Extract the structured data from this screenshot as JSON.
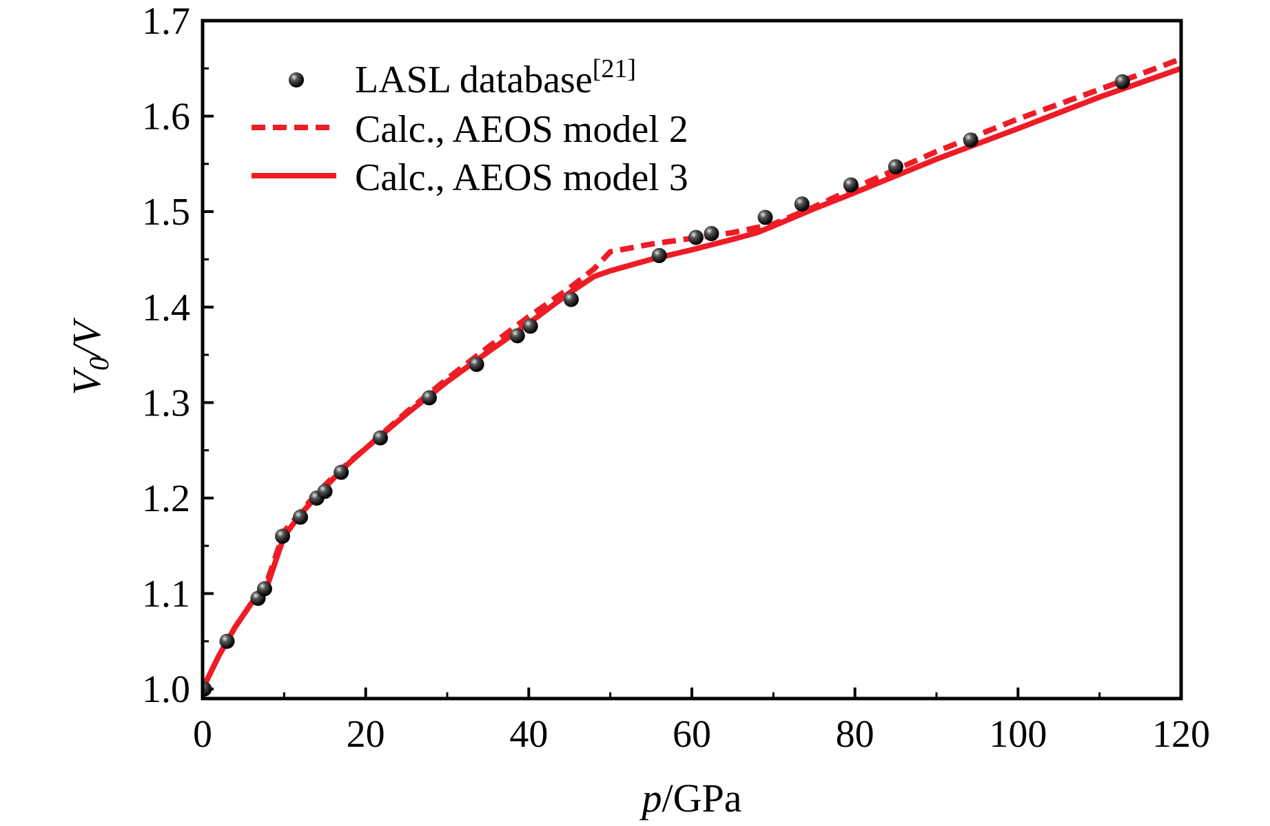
{
  "chart_data": {
    "type": "line",
    "xlabel": {
      "italic": "p",
      "rest": "/GPa"
    },
    "ylabel": {
      "main": "V",
      "sub": "0",
      "rest": "/V"
    },
    "xlim": [
      0,
      120
    ],
    "ylim": [
      0.99,
      1.7
    ],
    "xticks": [
      0,
      20,
      40,
      60,
      80,
      100,
      120
    ],
    "yticks": [
      1.0,
      1.1,
      1.2,
      1.3,
      1.4,
      1.5,
      1.6,
      1.7
    ],
    "xtick_labels": [
      "0",
      "20",
      "40",
      "60",
      "80",
      "100",
      "120"
    ],
    "ytick_labels": [
      "1.0",
      "1.1",
      "1.2",
      "1.3",
      "1.4",
      "1.5",
      "1.6",
      "1.7"
    ],
    "grid": false,
    "legend_position": "top-left",
    "series": [
      {
        "name": "LASL database",
        "name_superscript": "[21]",
        "kind": "scatter",
        "color": "#1a1a1a",
        "x": [
          0.2,
          3.0,
          6.8,
          7.6,
          9.8,
          12.0,
          14.0,
          15.0,
          17.0,
          21.8,
          27.8,
          33.6,
          38.6,
          40.2,
          45.2,
          56.0,
          60.5,
          62.4,
          69.0,
          73.5,
          79.5,
          85.0,
          94.2,
          112.8
        ],
        "y": [
          1.0,
          1.05,
          1.095,
          1.105,
          1.16,
          1.18,
          1.2,
          1.207,
          1.227,
          1.263,
          1.305,
          1.34,
          1.37,
          1.38,
          1.408,
          1.454,
          1.473,
          1.477,
          1.494,
          1.508,
          1.528,
          1.547,
          1.575,
          1.636
        ]
      },
      {
        "name": "Calc., AEOS model 2",
        "kind": "line",
        "dash": true,
        "color": "#ee1c25",
        "x": [
          0,
          2,
          4,
          6,
          8,
          9,
          10,
          12,
          14,
          16,
          18,
          20,
          25,
          30,
          35,
          40,
          45,
          48,
          50,
          55,
          60,
          65,
          70,
          75,
          80,
          90,
          100,
          110,
          120
        ],
        "y": [
          1.0,
          1.035,
          1.065,
          1.09,
          1.115,
          1.14,
          1.165,
          1.185,
          1.205,
          1.222,
          1.238,
          1.252,
          1.29,
          1.325,
          1.358,
          1.39,
          1.42,
          1.44,
          1.458,
          1.466,
          1.472,
          1.478,
          1.487,
          1.505,
          1.525,
          1.563,
          1.597,
          1.628,
          1.66
        ]
      },
      {
        "name": "Calc., AEOS model 3",
        "kind": "line",
        "dash": false,
        "color": "#ee1c25",
        "x": [
          0,
          2,
          4,
          6,
          8,
          9,
          10,
          12,
          14,
          16,
          18,
          20,
          25,
          30,
          35,
          40,
          45,
          48,
          50,
          55,
          60,
          65,
          68,
          70,
          75,
          80,
          90,
          100,
          110,
          120
        ],
        "y": [
          1.0,
          1.035,
          1.065,
          1.09,
          1.11,
          1.135,
          1.16,
          1.183,
          1.202,
          1.22,
          1.237,
          1.252,
          1.288,
          1.322,
          1.353,
          1.383,
          1.415,
          1.432,
          1.438,
          1.45,
          1.46,
          1.471,
          1.478,
          1.485,
          1.503,
          1.52,
          1.555,
          1.587,
          1.62,
          1.65
        ]
      }
    ]
  }
}
